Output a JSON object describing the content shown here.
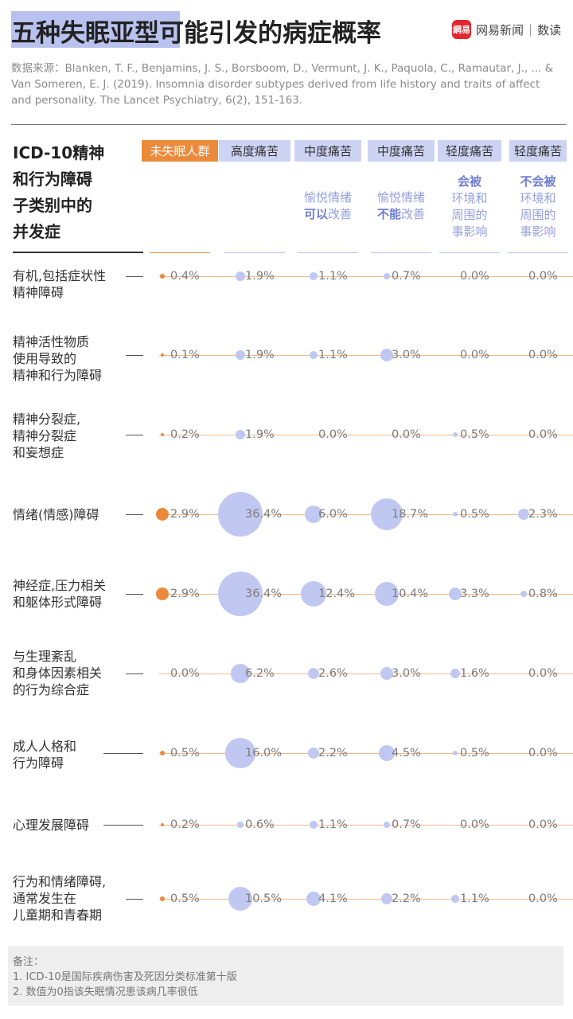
{
  "title": "五种失眠亚型可能引发的病症概率",
  "brand": {
    "logo_text": "網易",
    "name": "网易新闻",
    "separator": "|",
    "section": "数读"
  },
  "source_text": "数据来源：Blanken, T. F., Benjamins, J. S., Borsboom, D., Vermunt, J. K., Paquola, C., Ramautar, J., ... & Van Someren, E. J. (2019). Insomnia disorder subtypes derived from life history and traits of affect and personality. The Lancet Psychiatry, 6(2), 151-163.",
  "row_header": [
    "ICD-10精神",
    "和行为障碍",
    "子类别中的",
    "并发症"
  ],
  "colors": {
    "orange": "#ec8a3b",
    "blue": "#c0c8f1",
    "header_blue": "#cdd3f3",
    "line": "#f2b98e"
  },
  "chart_data": {
    "type": "bubble-table",
    "title": "五种失眠亚型可能引发的病症概率",
    "unit": "%",
    "columns": [
      {
        "name": "未失眠人群",
        "sub": []
      },
      {
        "name": "高度痛苦",
        "sub": []
      },
      {
        "name": "中度痛苦",
        "sub": [
          "愉悦情绪",
          "可以改善"
        ],
        "bold": "可以"
      },
      {
        "name": "中度痛苦",
        "sub": [
          "愉悦情绪",
          "不能改善"
        ],
        "bold": "不能"
      },
      {
        "name": "轻度痛苦",
        "sub": [
          "会被",
          "环境和",
          "周围的",
          "事影响"
        ],
        "bold": "会被"
      },
      {
        "name": "轻度痛苦",
        "sub": [
          "不会被",
          "环境和",
          "周围的",
          "事影响"
        ],
        "bold": "不会被"
      }
    ],
    "rows": [
      {
        "label": [
          "有机,包括症状性",
          "精神障碍"
        ],
        "values": [
          0.4,
          1.9,
          1.1,
          0.7,
          0.0,
          0.0
        ],
        "labels": [
          "0.4%",
          "1.9%",
          "1.1%",
          "0.7%",
          "0.0%",
          "0.0%"
        ]
      },
      {
        "label": [
          "精神活性物质",
          "使用导致的",
          "精神和行为障碍"
        ],
        "values": [
          0.1,
          1.9,
          1.1,
          3.0,
          0.0,
          0.0
        ],
        "labels": [
          "0.1%",
          "1.9%",
          "1.1%",
          "3.0%",
          "0.0%",
          "0.0%"
        ]
      },
      {
        "label": [
          "精神分裂症,",
          "精神分裂症",
          "和妄想症"
        ],
        "values": [
          0.2,
          1.9,
          0.0,
          0.0,
          0.5,
          0.0
        ],
        "labels": [
          "0.2%",
          "1.9%",
          "0.0%",
          "0.0%",
          "0.5%",
          "0.0%"
        ]
      },
      {
        "label": [
          "情绪(情感)障碍"
        ],
        "values": [
          2.9,
          36.4,
          6.0,
          18.7,
          0.5,
          2.3
        ],
        "labels": [
          "2.9%",
          "36.4%",
          "6.0%",
          "18.7%",
          "0.5%",
          "2.3%"
        ]
      },
      {
        "label": [
          "神经症,压力相关",
          "和躯体形式障碍"
        ],
        "values": [
          2.9,
          36.4,
          12.4,
          10.4,
          3.3,
          0.8
        ],
        "labels": [
          "2.9%",
          "36.4%",
          "12.4%",
          "10.4%",
          "3.3%",
          "0.8%"
        ]
      },
      {
        "label": [
          "与生理紊乱",
          "和身体因素相关",
          "的行为综合症"
        ],
        "values": [
          0.0,
          6.2,
          2.6,
          3.0,
          1.6,
          0.0
        ],
        "labels": [
          "0.0%",
          "6.2%",
          "2.6%",
          "3.0%",
          "1.6%",
          "0.0%"
        ]
      },
      {
        "label": [
          "成人人格和",
          "行为障碍"
        ],
        "values": [
          0.5,
          16.0,
          2.2,
          4.5,
          0.5,
          0.0
        ],
        "labels": [
          "0.5%",
          "16.0%",
          "2.2%",
          "4.5%",
          "0.5%",
          "0.0%"
        ]
      },
      {
        "label": [
          "心理发展障碍"
        ],
        "values": [
          0.2,
          0.6,
          1.1,
          0.7,
          0.0,
          0.0
        ],
        "labels": [
          "0.2%",
          "0.6%",
          "1.1%",
          "0.7%",
          "0.0%",
          "0.0%"
        ]
      },
      {
        "label": [
          "行为和情绪障碍,",
          "通常发生在",
          "儿童期和青春期"
        ],
        "values": [
          0.5,
          10.5,
          4.1,
          2.2,
          1.1,
          0.0
        ],
        "labels": [
          "0.5%",
          "10.5%",
          "4.1%",
          "2.2%",
          "1.1%",
          "0.0%"
        ]
      }
    ]
  },
  "notes": {
    "heading": "备注：",
    "items": [
      "1. ICD-10是国际疾病伤害及死因分类标准第十版",
      "2. 数值为0指该失眠情况患该病几率很低"
    ]
  }
}
